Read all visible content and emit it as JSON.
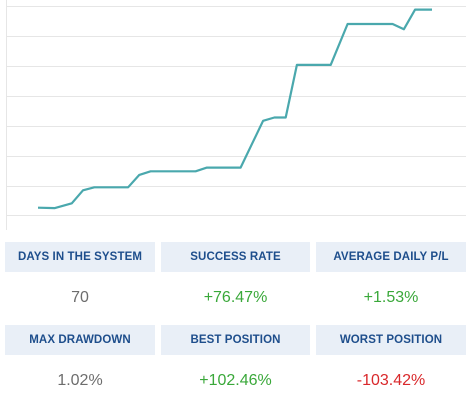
{
  "chart_data": {
    "type": "line",
    "x": [
      0,
      3,
      6,
      8,
      10,
      16,
      18,
      20,
      28,
      30,
      36,
      40,
      42,
      44,
      46,
      52,
      55,
      58,
      63,
      65,
      67,
      69,
      70
    ],
    "y": [
      1.2,
      1.0,
      3.5,
      10.2,
      11.8,
      11.8,
      18.2,
      20.1,
      20.1,
      22.0,
      22.0,
      46.3,
      48.0,
      48.0,
      75.3,
      75.3,
      96.5,
      96.5,
      96.5,
      93.8,
      104.0,
      104.0,
      104.0
    ],
    "color": "#4aa8ad",
    "grid": true
  },
  "stats": [
    {
      "label": "DAYS IN THE SYSTEM",
      "value": "70",
      "tone": "neutral"
    },
    {
      "label": "SUCCESS RATE",
      "value": "+76.47%",
      "tone": "positive"
    },
    {
      "label": "AVERAGE DAILY P/L",
      "value": "+1.53%",
      "tone": "positive"
    },
    {
      "label": "MAX DRAWDOWN",
      "value": "1.02%",
      "tone": "neutral"
    },
    {
      "label": "BEST POSITION",
      "value": "+102.46%",
      "tone": "positive"
    },
    {
      "label": "WORST POSITION",
      "value": "-103.42%",
      "tone": "negative"
    }
  ],
  "colors": {
    "header_bg": "#e9eff7",
    "header_text": "#1e4e8c",
    "positive": "#3aa83a",
    "negative": "#d9282b",
    "neutral": "#6d6d6d"
  }
}
